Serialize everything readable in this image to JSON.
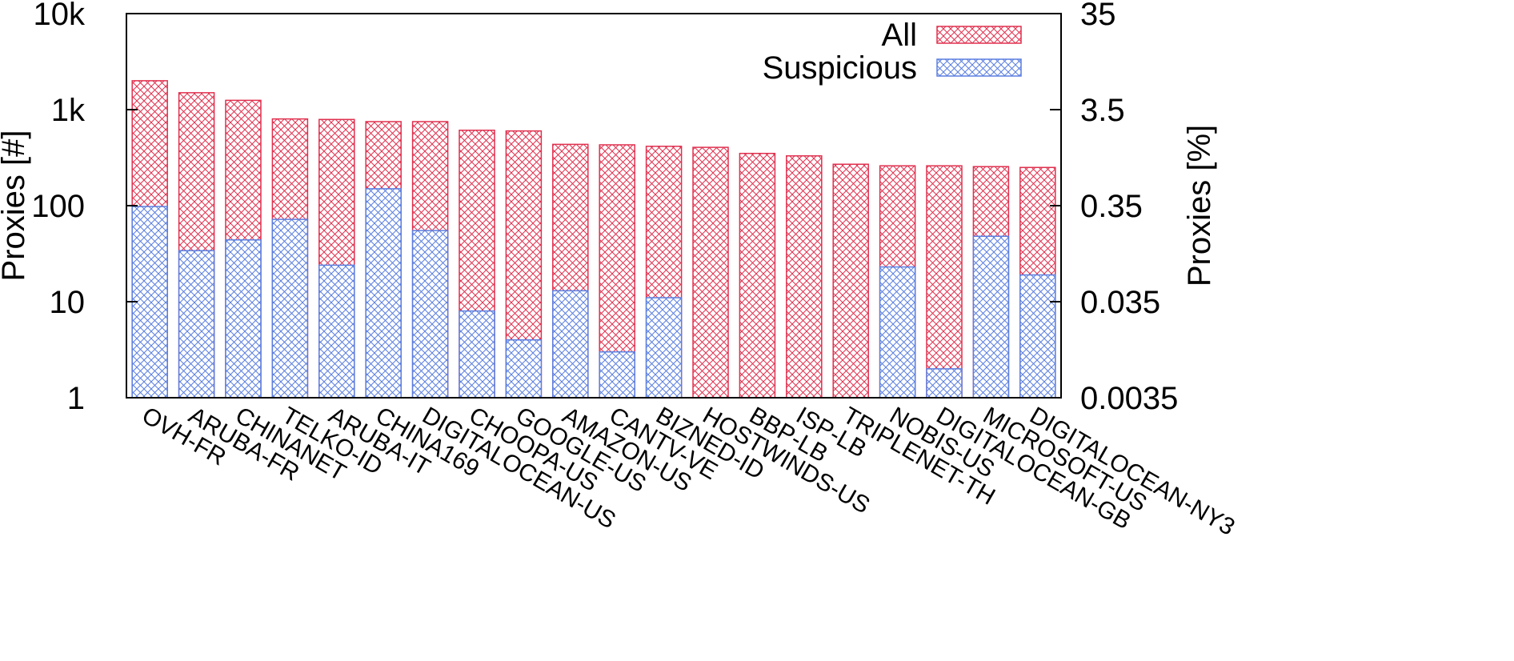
{
  "chart_data": {
    "type": "bar",
    "yscale": "log",
    "categories": [
      "OVH-FR",
      "ARUBA-FR",
      "CHINANET",
      "TELKO-ID",
      "ARUBA-IT",
      "CHINA169",
      "DIGITALOCEAN-US",
      "CHOOPA-US",
      "GOOGLE-US",
      "AMAZON-US",
      "CANTV-VE",
      "BIZNED-ID",
      "HOSTWINDS-US",
      "BBP-LB",
      "ISP-LB",
      "TRIPLENET-TH",
      "NOBIS-US",
      "DIGITALOCEAN-GB",
      "MICROSOFT-US",
      "DIGITALOCEAN-NY3"
    ],
    "series": [
      {
        "name": "All",
        "color": "#e0314f",
        "values": [
          2000,
          1500,
          1250,
          800,
          790,
          750,
          750,
          610,
          600,
          435,
          430,
          415,
          405,
          350,
          330,
          270,
          260,
          260,
          255,
          250
        ]
      },
      {
        "name": "Suspicious",
        "color": "#5b7fe0",
        "values": [
          98,
          34,
          44,
          72,
          24,
          150,
          55,
          8,
          4,
          13,
          3,
          11,
          null,
          null,
          null,
          null,
          23,
          2,
          48,
          19
        ]
      }
    ],
    "ylabel": "Proxies [#]",
    "y2label": "Proxies [%]",
    "ylim": [
      1,
      10000
    ],
    "y2lim": [
      0.0035,
      35
    ],
    "yticks": [
      "1",
      "10",
      "100",
      "1k",
      "10k"
    ],
    "y2ticks": [
      "0.0035",
      "0.035",
      "0.35",
      "3.5",
      "35"
    ],
    "legend_position": "top-right",
    "grid": false
  }
}
